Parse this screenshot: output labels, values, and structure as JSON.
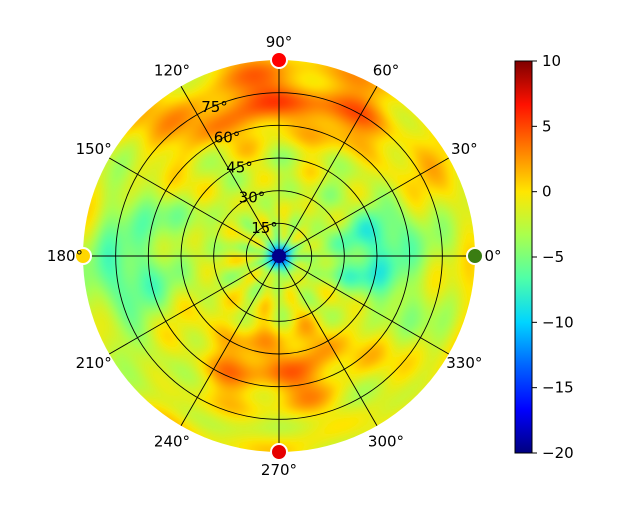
{
  "chart_data": {
    "type": "heatmap",
    "projection": "polar",
    "title": "",
    "zero_direction": "east",
    "angle_ticks": [
      0,
      30,
      60,
      90,
      120,
      150,
      180,
      210,
      240,
      270,
      300,
      330
    ],
    "angle_tick_labels": [
      "0°",
      "30°",
      "60°",
      "90°",
      "120°",
      "150°",
      "180°",
      "210°",
      "240°",
      "270°",
      "300°",
      "330°"
    ],
    "radial_ticks": [
      15,
      30,
      45,
      60,
      75
    ],
    "radial_tick_labels": [
      "15°",
      "30°",
      "45°",
      "60°",
      "75°"
    ],
    "radial_range": [
      0,
      90
    ],
    "grid": true,
    "colorbar": {
      "range": [
        -20,
        10
      ],
      "ticks": [
        -20,
        -15,
        -10,
        -5,
        0,
        5,
        10
      ],
      "tick_labels": [
        "−20",
        "−15",
        "−10",
        "−5",
        "0",
        "5",
        "10"
      ],
      "colormap": "jet-like"
    },
    "color_stops": [
      "#00007f",
      "#0000ff",
      "#0063ff",
      "#00d4ff",
      "#4effa9",
      "#a9ff4e",
      "#ffe600",
      "#ff7b00",
      "#ff1100",
      "#7f0000"
    ],
    "approx_pattern": {
      "background_level": -2,
      "upper_band": {
        "center_deg": 90,
        "angular_width_deg": 60,
        "radius_deg": 72,
        "level": 4
      },
      "lower_band": {
        "center_deg": 270,
        "angular_width_deg": 50,
        "radius_deg": 52,
        "level": 3
      },
      "side_lobes_low": [
        {
          "center_deg": 0,
          "radius_deg": 45,
          "level": -8
        },
        {
          "center_deg": 180,
          "radius_deg": 70,
          "level": -7
        }
      ],
      "center_level": -16
    },
    "markers": [
      {
        "angle_deg": 0,
        "radius_deg": 90,
        "color": "#3a7d12",
        "label": ""
      },
      {
        "angle_deg": 90,
        "radius_deg": 90,
        "color": "#ff0000",
        "label": ""
      },
      {
        "angle_deg": 180,
        "radius_deg": 90,
        "color": "#ffd700",
        "label": ""
      },
      {
        "angle_deg": 270,
        "radius_deg": 90,
        "color": "#e60000",
        "label": ""
      },
      {
        "angle_deg": 0,
        "radius_deg": 0,
        "color": "#00008b",
        "label": ""
      }
    ]
  }
}
